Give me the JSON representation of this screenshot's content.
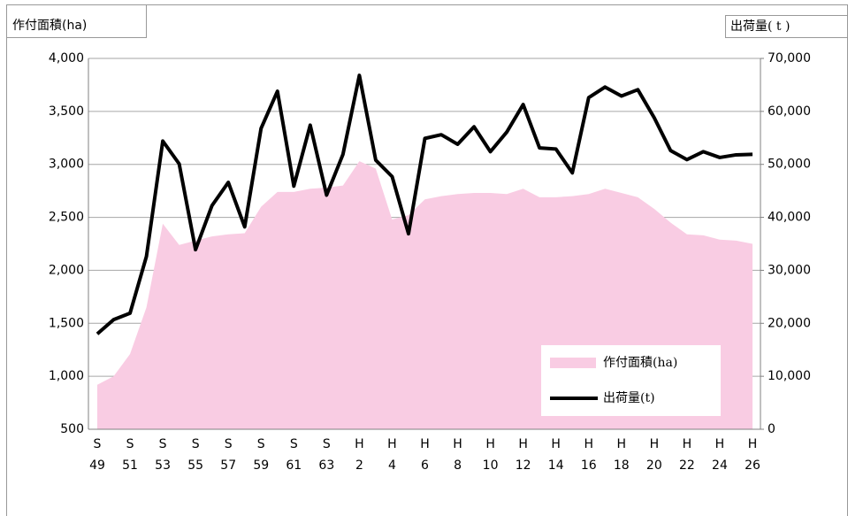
{
  "chart_data": {
    "type": "area-line",
    "y_axis_label": "作付面積(ha)",
    "y2_axis_label": "出荷量( t )",
    "categories": [
      "S\n49",
      null,
      "S\n51",
      null,
      "S\n53",
      null,
      "S\n55",
      null,
      "S\n57",
      null,
      "S\n59",
      null,
      "S\n61",
      null,
      "S\n63",
      null,
      "H\n2",
      null,
      "H\n4",
      null,
      "H\n6",
      null,
      "H\n8",
      null,
      "H\n10",
      null,
      "H\n12",
      null,
      "H\n14",
      null,
      "H\n16",
      null,
      "H\n18",
      null,
      "H\n20",
      null,
      "H\n22",
      null,
      "H\n24",
      null,
      "H\n26"
    ],
    "series": [
      {
        "name": "作付面積(ha)",
        "color": "#f9cce3",
        "kind": "area",
        "axis": "y",
        "values": [
          920,
          1000,
          1210,
          1650,
          2440,
          2240,
          2280,
          2320,
          2340,
          2350,
          2600,
          2740,
          2740,
          2770,
          2780,
          2800,
          3030,
          2960,
          2480,
          2520,
          2670,
          2700,
          2720,
          2730,
          2730,
          2720,
          2770,
          2690,
          2690,
          2700,
          2720,
          2770,
          2730,
          2690,
          2580,
          2450,
          2340,
          2330,
          2290,
          2280,
          2250
        ]
      },
      {
        "name": "出荷量(t)",
        "color": "#000000",
        "kind": "line",
        "axis": "y2",
        "values": [
          18000,
          20700,
          21900,
          32600,
          54400,
          50100,
          33900,
          42200,
          46600,
          38200,
          56800,
          63800,
          45900,
          57400,
          44200,
          51900,
          66800,
          50800,
          47700,
          36900,
          54900,
          55600,
          53800,
          57100,
          52400,
          56100,
          61300,
          53100,
          52900,
          48400,
          62600,
          64600,
          62900,
          64100,
          58800,
          52600,
          50900,
          52400,
          51300,
          51800,
          51900
        ]
      }
    ],
    "ylim": [
      500,
      4000
    ],
    "yticks": [
      {
        "value": 500,
        "label": "500"
      },
      {
        "value": 1000,
        "label": "1,000"
      },
      {
        "value": 1500,
        "label": "1,500"
      },
      {
        "value": 2000,
        "label": "2,000"
      },
      {
        "value": 2500,
        "label": "2,500"
      },
      {
        "value": 3000,
        "label": "3,000"
      },
      {
        "value": 3500,
        "label": "3,500"
      },
      {
        "value": 4000,
        "label": "4,000"
      }
    ],
    "y2lim": [
      0,
      70000
    ],
    "y2ticks": [
      0,
      {
        "value": 10000,
        "label": "10,000"
      },
      {
        "value": 20000,
        "label": "20,000"
      },
      {
        "value": 30000,
        "label": "30,000"
      },
      {
        "value": 40000,
        "label": "40,000"
      },
      {
        "value": 50000,
        "label": "50,000"
      },
      {
        "value": 60000,
        "label": "60,000"
      },
      {
        "value": 70000,
        "label": "70,000"
      }
    ],
    "grid": true,
    "legend": "lower right"
  }
}
